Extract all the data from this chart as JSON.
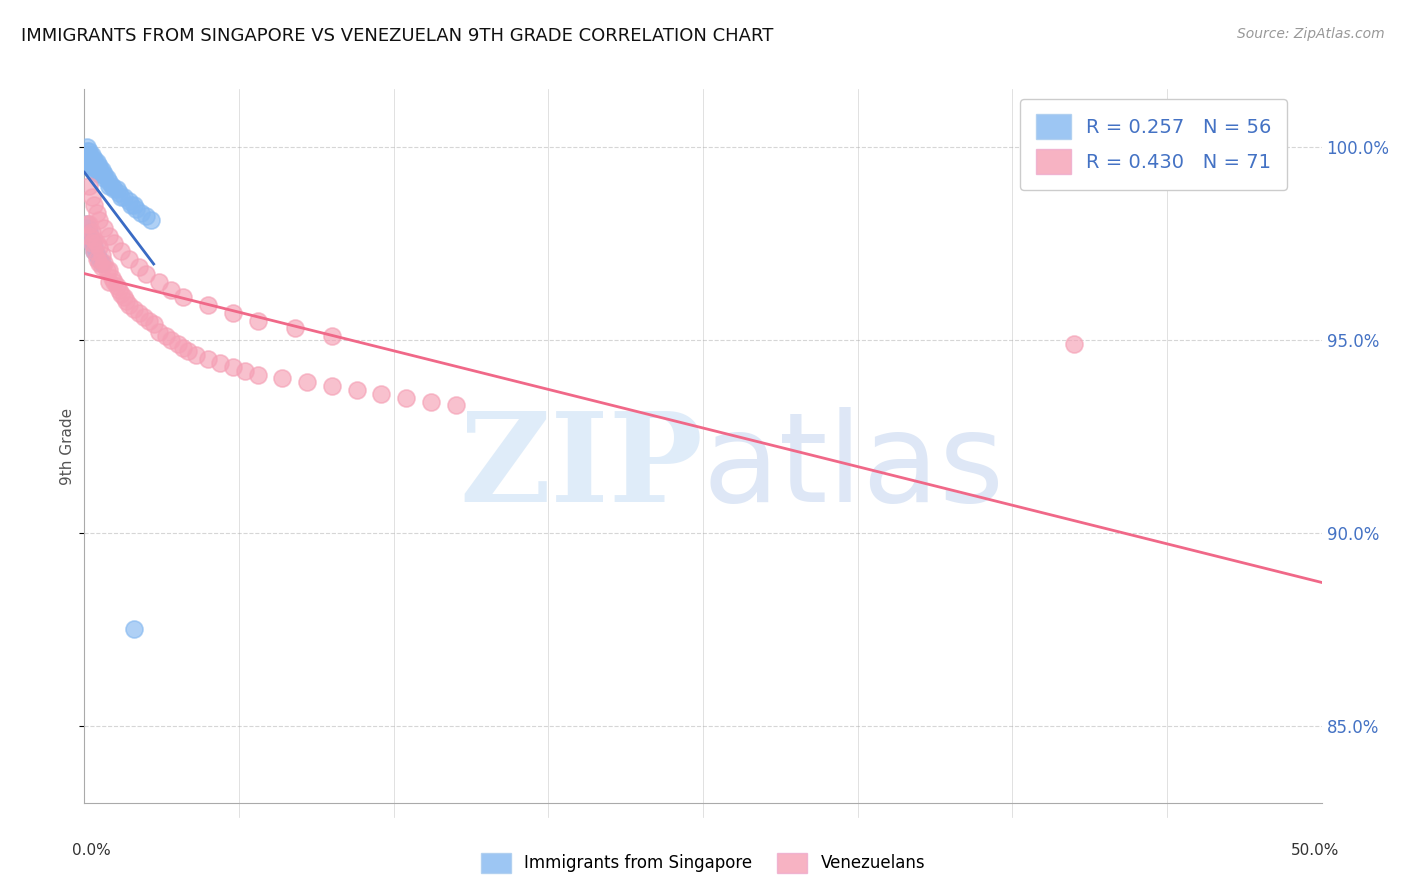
{
  "title": "IMMIGRANTS FROM SINGAPORE VS VENEZUELAN 9TH GRADE CORRELATION CHART",
  "source": "Source: ZipAtlas.com",
  "ylabel": "9th Grade",
  "xlim": [
    0.0,
    0.5
  ],
  "ylim": [
    0.83,
    1.015
  ],
  "y_ticks": [
    0.85,
    0.9,
    0.95,
    1.0
  ],
  "y_tick_labels": [
    "85.0%",
    "90.0%",
    "95.0%",
    "100.0%"
  ],
  "x_tick_left_label": "0.0%",
  "x_tick_right_label": "50.0%",
  "singapore_color": "#85b8f0",
  "singaporeline_color": "#3a6bc4",
  "venezuelan_color": "#f5a0b5",
  "venezuelanline_color": "#f06888",
  "singapore_R": 0.257,
  "singapore_N": 56,
  "venezuelan_R": 0.43,
  "venezuelan_N": 71,
  "legend_label_singapore": "Immigrants from Singapore",
  "legend_label_venezuelan": "Venezuelans",
  "singapore_x": [
    0.001,
    0.001,
    0.001,
    0.001,
    0.001,
    0.002,
    0.002,
    0.002,
    0.002,
    0.002,
    0.003,
    0.003,
    0.003,
    0.003,
    0.004,
    0.004,
    0.004,
    0.004,
    0.005,
    0.005,
    0.005,
    0.006,
    0.006,
    0.006,
    0.007,
    0.007,
    0.008,
    0.008,
    0.009,
    0.01,
    0.01,
    0.011,
    0.012,
    0.013,
    0.014,
    0.015,
    0.016,
    0.018,
    0.019,
    0.02,
    0.021,
    0.023,
    0.025,
    0.027,
    0.001,
    0.001,
    0.002,
    0.002,
    0.003,
    0.003,
    0.004,
    0.004,
    0.005,
    0.006,
    0.007,
    0.02
  ],
  "singapore_y": [
    1.0,
    0.999,
    0.998,
    0.997,
    0.996,
    0.999,
    0.998,
    0.997,
    0.996,
    0.995,
    0.998,
    0.997,
    0.996,
    0.995,
    0.997,
    0.996,
    0.995,
    0.994,
    0.996,
    0.995,
    0.994,
    0.995,
    0.994,
    0.993,
    0.994,
    0.993,
    0.993,
    0.992,
    0.992,
    0.991,
    0.99,
    0.99,
    0.989,
    0.989,
    0.988,
    0.987,
    0.987,
    0.986,
    0.985,
    0.985,
    0.984,
    0.983,
    0.982,
    0.981,
    0.98,
    0.979,
    0.978,
    0.977,
    0.976,
    0.975,
    0.974,
    0.973,
    0.972,
    0.971,
    0.97,
    0.875
  ],
  "venezuelan_x": [
    0.001,
    0.002,
    0.002,
    0.003,
    0.003,
    0.004,
    0.004,
    0.005,
    0.005,
    0.006,
    0.006,
    0.007,
    0.007,
    0.008,
    0.009,
    0.01,
    0.01,
    0.011,
    0.012,
    0.013,
    0.014,
    0.015,
    0.016,
    0.017,
    0.018,
    0.02,
    0.022,
    0.024,
    0.026,
    0.028,
    0.03,
    0.033,
    0.035,
    0.038,
    0.04,
    0.042,
    0.045,
    0.05,
    0.055,
    0.06,
    0.065,
    0.07,
    0.08,
    0.09,
    0.1,
    0.11,
    0.12,
    0.13,
    0.14,
    0.15,
    0.002,
    0.003,
    0.004,
    0.005,
    0.006,
    0.008,
    0.01,
    0.012,
    0.015,
    0.018,
    0.022,
    0.025,
    0.03,
    0.035,
    0.04,
    0.05,
    0.06,
    0.07,
    0.085,
    0.1,
    0.4
  ],
  "venezuelan_y": [
    0.98,
    0.98,
    0.977,
    0.978,
    0.975,
    0.976,
    0.973,
    0.975,
    0.971,
    0.974,
    0.97,
    0.972,
    0.969,
    0.97,
    0.968,
    0.968,
    0.965,
    0.966,
    0.965,
    0.964,
    0.963,
    0.962,
    0.961,
    0.96,
    0.959,
    0.958,
    0.957,
    0.956,
    0.955,
    0.954,
    0.952,
    0.951,
    0.95,
    0.949,
    0.948,
    0.947,
    0.946,
    0.945,
    0.944,
    0.943,
    0.942,
    0.941,
    0.94,
    0.939,
    0.938,
    0.937,
    0.936,
    0.935,
    0.934,
    0.933,
    0.99,
    0.987,
    0.985,
    0.983,
    0.981,
    0.979,
    0.977,
    0.975,
    0.973,
    0.971,
    0.969,
    0.967,
    0.965,
    0.963,
    0.961,
    0.959,
    0.957,
    0.955,
    0.953,
    0.951,
    0.949
  ],
  "background_color": "#ffffff",
  "grid_color": "#cccccc",
  "spine_color": "#aaaaaa"
}
